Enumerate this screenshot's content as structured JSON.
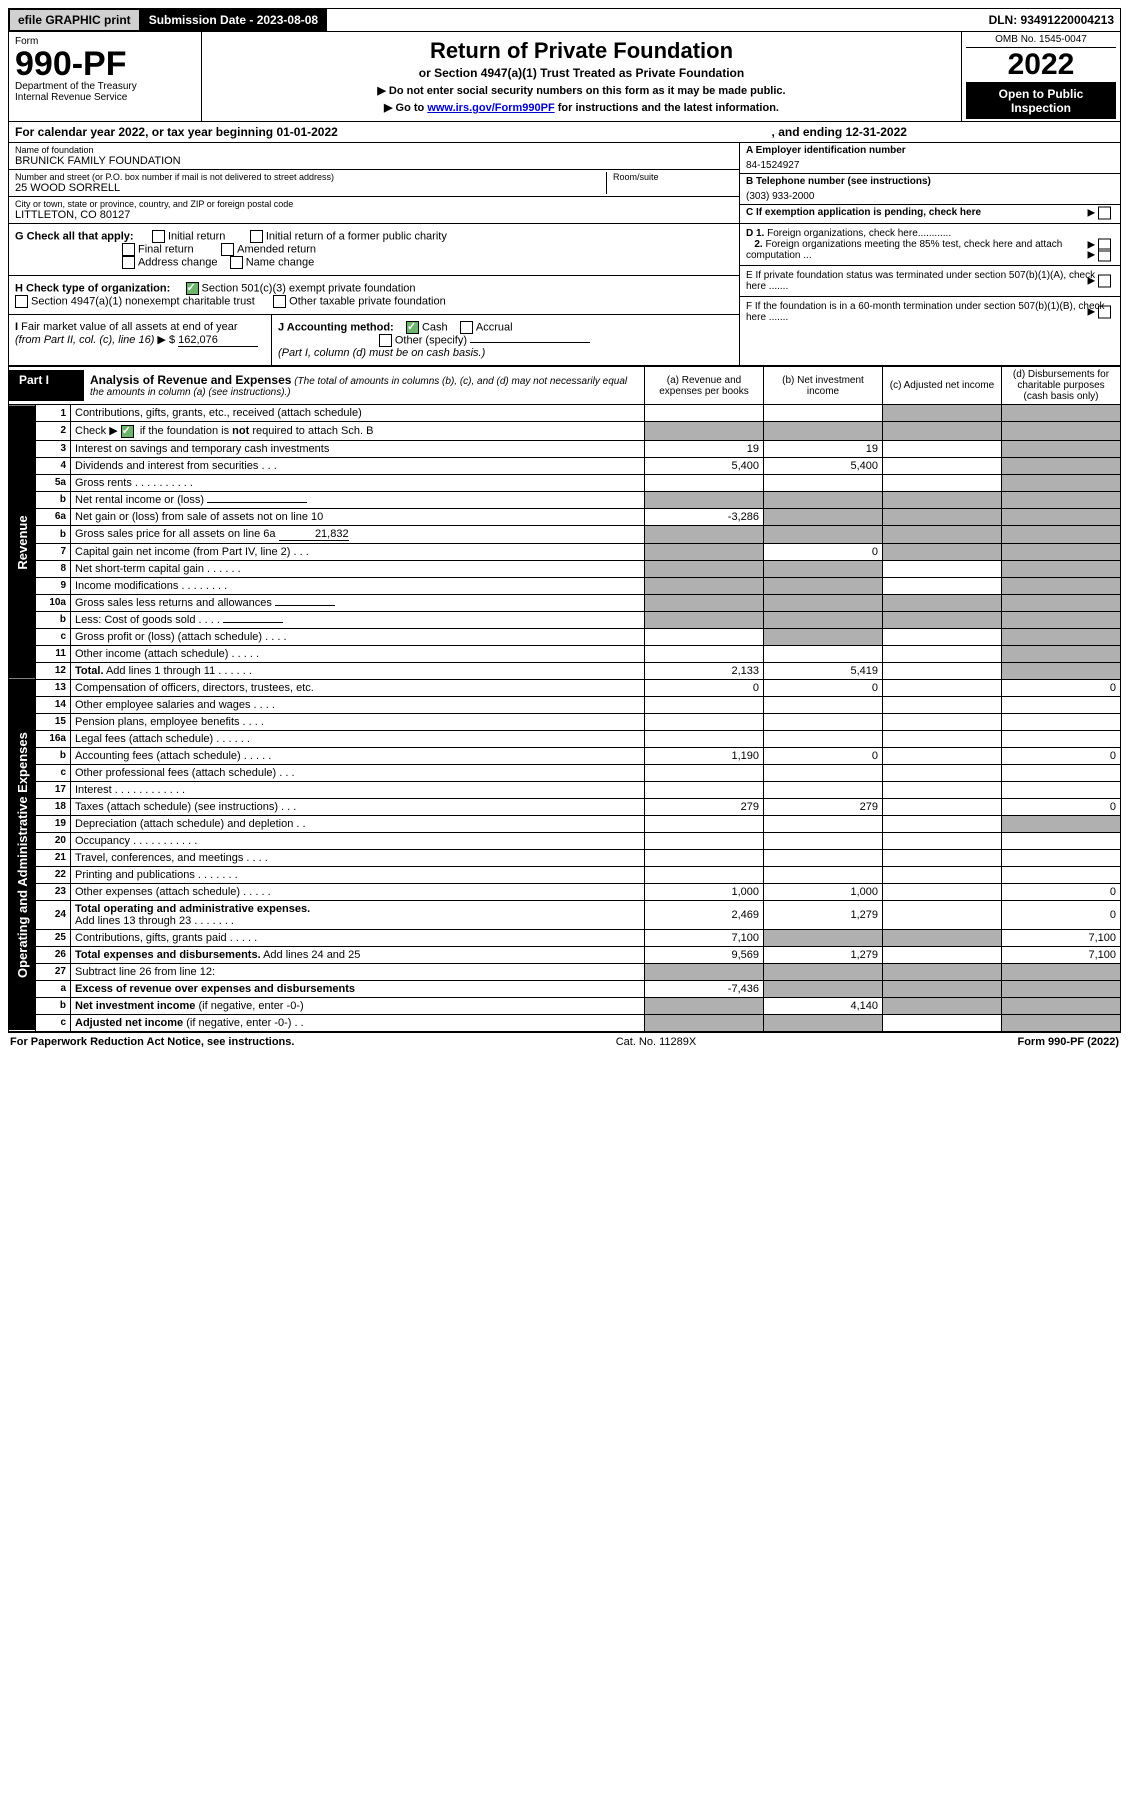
{
  "topbar": {
    "efile": "efile GRAPHIC print",
    "submission": "Submission Date - 2023-08-08",
    "dln": "DLN: 93491220004213"
  },
  "header": {
    "form_label": "Form",
    "form_no": "990-PF",
    "dept1": "Department of the Treasury",
    "dept2": "Internal Revenue Service",
    "title": "Return of Private Foundation",
    "subtitle": "or Section 4947(a)(1) Trust Treated as Private Foundation",
    "note1": "▶ Do not enter social security numbers on this form as it may be made public.",
    "note2_pre": "▶ Go to ",
    "note2_link": "www.irs.gov/Form990PF",
    "note2_post": " for instructions and the latest information.",
    "omb": "OMB No. 1545-0047",
    "year": "2022",
    "open": "Open to Public Inspection"
  },
  "calyear": {
    "left": "For calendar year 2022, or tax year beginning 01-01-2022",
    "right": ", and ending 12-31-2022"
  },
  "info": {
    "name_label": "Name of foundation",
    "name": "BRUNICK FAMILY FOUNDATION",
    "addr_label": "Number and street (or P.O. box number if mail is not delivered to street address)",
    "addr": "25 WOOD SORRELL",
    "room_label": "Room/suite",
    "city_label": "City or town, state or province, country, and ZIP or foreign postal code",
    "city": "LITTLETON, CO  80127",
    "a_label": "A Employer identification number",
    "a_val": "84-1524927",
    "b_label": "B Telephone number (see instructions)",
    "b_val": "(303) 933-2000",
    "c_label": "C If exemption application is pending, check here"
  },
  "g": {
    "label": "G Check all that apply:",
    "opts": [
      "Initial return",
      "Final return",
      "Address change",
      "Initial return of a former public charity",
      "Amended return",
      "Name change"
    ]
  },
  "h": {
    "label": "H Check type of organization:",
    "opt1": "Section 501(c)(3) exempt private foundation",
    "opt2": "Section 4947(a)(1) nonexempt charitable trust",
    "opt3": "Other taxable private foundation"
  },
  "i": {
    "label": "I Fair market value of all assets at end of year (from Part II, col. (c), line 16) ▶ $",
    "val": "162,076"
  },
  "j": {
    "label": "J Accounting method:",
    "cash": "Cash",
    "accrual": "Accrual",
    "other": "Other (specify)",
    "note": "(Part I, column (d) must be on cash basis.)"
  },
  "right_items": {
    "d1": "D 1. Foreign organizations, check here............",
    "d2": "2. Foreign organizations meeting the 85% test, check here and attach computation ...",
    "e": "E  If private foundation status was terminated under section 507(b)(1)(A), check here .......",
    "f": "F  If the foundation is in a 60-month termination under section 507(b)(1)(B), check here ......."
  },
  "part1": {
    "label": "Part I",
    "title": "Analysis of Revenue and Expenses",
    "note": "(The total of amounts in columns (b), (c), and (d) may not necessarily equal the amounts in column (a) (see instructions).)",
    "cols": {
      "a": "(a) Revenue and expenses per books",
      "b": "(b) Net investment income",
      "c": "(c) Adjusted net income",
      "d": "(d) Disbursements for charitable purposes (cash basis only)"
    }
  },
  "sections": {
    "revenue": "Revenue",
    "expenses": "Operating and Administrative Expenses"
  },
  "rows": [
    {
      "n": "1",
      "d": "s",
      "a": "",
      "b": "",
      "c": "s"
    },
    {
      "n": "2",
      "d": "s",
      "a": "s",
      "b": "s",
      "c": "s",
      "bold_not": true
    },
    {
      "n": "3",
      "d": "s",
      "a": "19",
      "b": "19",
      "c": ""
    },
    {
      "n": "4",
      "d": "s",
      "a": "5,400",
      "b": "5,400",
      "c": ""
    },
    {
      "n": "5a",
      "d": "s",
      "a": "",
      "b": "",
      "c": ""
    },
    {
      "n": "b",
      "d": "s",
      "a": "s",
      "b": "s",
      "c": "s",
      "inline": true
    },
    {
      "n": "6a",
      "d": "s",
      "a": "-3,286",
      "b": "s",
      "c": "s"
    },
    {
      "n": "b",
      "d": "s",
      "a": "s",
      "b": "s",
      "c": "s",
      "inline": true,
      "inline_val": "21,832"
    },
    {
      "n": "7",
      "d": "s",
      "a": "s",
      "b": "0",
      "c": "s"
    },
    {
      "n": "8",
      "d": "s",
      "a": "s",
      "b": "s",
      "c": ""
    },
    {
      "n": "9",
      "d": "s",
      "a": "s",
      "b": "s",
      "c": ""
    },
    {
      "n": "10a",
      "d": "s",
      "a": "s",
      "b": "s",
      "c": "s",
      "inline": true
    },
    {
      "n": "b",
      "d": "s",
      "a": "s",
      "b": "s",
      "c": "s",
      "inline": true
    },
    {
      "n": "c",
      "d": "s",
      "a": "",
      "b": "s",
      "c": ""
    },
    {
      "n": "11",
      "d": "s",
      "a": "",
      "b": "",
      "c": ""
    },
    {
      "n": "12",
      "d": "s",
      "a": "2,133",
      "b": "5,419",
      "c": "",
      "bold": true
    }
  ],
  "exp_rows": [
    {
      "n": "13",
      "d": "0",
      "a": "0",
      "b": "0",
      "c": ""
    },
    {
      "n": "14",
      "d": "",
      "a": "",
      "b": "",
      "c": ""
    },
    {
      "n": "15",
      "d": "",
      "a": "",
      "b": "",
      "c": ""
    },
    {
      "n": "16a",
      "d": "",
      "a": "",
      "b": "",
      "c": ""
    },
    {
      "n": "b",
      "d": "0",
      "a": "1,190",
      "b": "0",
      "c": ""
    },
    {
      "n": "c",
      "d": "",
      "a": "",
      "b": "",
      "c": ""
    },
    {
      "n": "17",
      "d": "",
      "a": "",
      "b": "",
      "c": ""
    },
    {
      "n": "18",
      "d": "0",
      "a": "279",
      "b": "279",
      "c": ""
    },
    {
      "n": "19",
      "d": "s",
      "a": "",
      "b": "",
      "c": ""
    },
    {
      "n": "20",
      "d": "",
      "a": "",
      "b": "",
      "c": ""
    },
    {
      "n": "21",
      "d": "",
      "a": "",
      "b": "",
      "c": ""
    },
    {
      "n": "22",
      "d": "",
      "a": "",
      "b": "",
      "c": ""
    },
    {
      "n": "23",
      "d": "0",
      "a": "1,000",
      "b": "1,000",
      "c": ""
    },
    {
      "n": "24",
      "d": "0",
      "a": "2,469",
      "b": "1,279",
      "c": "",
      "bold": true
    },
    {
      "n": "25",
      "d": "7,100",
      "a": "7,100",
      "b": "s",
      "c": "s"
    },
    {
      "n": "26",
      "d": "7,100",
      "a": "9,569",
      "b": "1,279",
      "c": "",
      "bold": true
    },
    {
      "n": "27",
      "d": "s",
      "a": "s",
      "b": "s",
      "c": "s"
    },
    {
      "n": "a",
      "d": "s",
      "a": "-7,436",
      "b": "s",
      "c": "s",
      "bold": true
    },
    {
      "n": "b",
      "d": "s",
      "a": "s",
      "b": "4,140",
      "c": "s",
      "bold": true
    },
    {
      "n": "c",
      "d": "s",
      "a": "s",
      "b": "s",
      "c": "",
      "bold": true
    }
  ],
  "footer": {
    "left": "For Paperwork Reduction Act Notice, see instructions.",
    "mid": "Cat. No. 11289X",
    "right": "Form 990-PF (2022)"
  }
}
